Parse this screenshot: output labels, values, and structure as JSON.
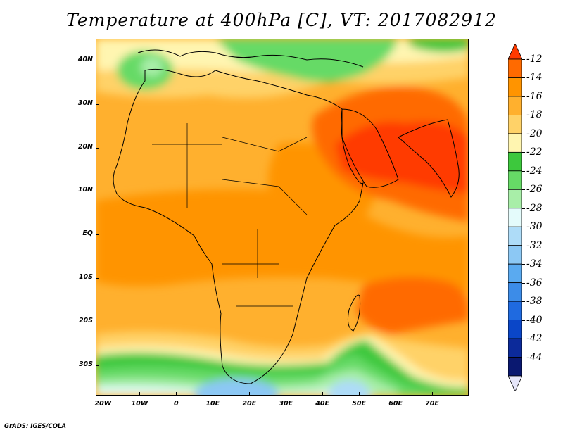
{
  "title": "Temperature at 400hPa [C], VT: 2017082912",
  "credit": "GrADS: IGES/COLA",
  "map": {
    "lon_range": [
      -22,
      80
    ],
    "lat_range": [
      -37,
      45
    ],
    "lat_ticks": [
      {
        "value": 40,
        "label": "40N"
      },
      {
        "value": 30,
        "label": "30N"
      },
      {
        "value": 20,
        "label": "20N"
      },
      {
        "value": 10,
        "label": "10N"
      },
      {
        "value": 0,
        "label": "EQ"
      },
      {
        "value": -10,
        "label": "10S"
      },
      {
        "value": -20,
        "label": "20S"
      },
      {
        "value": -30,
        "label": "30S"
      }
    ],
    "lon_ticks": [
      {
        "value": -20,
        "label": "20W"
      },
      {
        "value": -10,
        "label": "10W"
      },
      {
        "value": 0,
        "label": "0"
      },
      {
        "value": 10,
        "label": "10E"
      },
      {
        "value": 20,
        "label": "20E"
      },
      {
        "value": 30,
        "label": "30E"
      },
      {
        "value": 40,
        "label": "40E"
      },
      {
        "value": 50,
        "label": "50E"
      },
      {
        "value": 60,
        "label": "60E"
      },
      {
        "value": 70,
        "label": "70E"
      }
    ]
  },
  "colorbar": {
    "labels": [
      "-12",
      "-14",
      "-16",
      "-18",
      "-20",
      "-22",
      "-24",
      "-26",
      "-28",
      "-30",
      "-32",
      "-34",
      "-36",
      "-38",
      "-40",
      "-42",
      "-44"
    ],
    "colors": [
      "#ff3a00",
      "#ff6a00",
      "#ff9400",
      "#ffb02e",
      "#ffd268",
      "#fff5b0",
      "#3dc83d",
      "#66da66",
      "#a8eea8",
      "#e4fbfb",
      "#aedcf8",
      "#8cc8f4",
      "#5aaaf0",
      "#3c8ce8",
      "#1f6ae0",
      "#0a46c8",
      "#0c2a9a",
      "#0a1870",
      "#e6e6fa"
    ]
  }
}
